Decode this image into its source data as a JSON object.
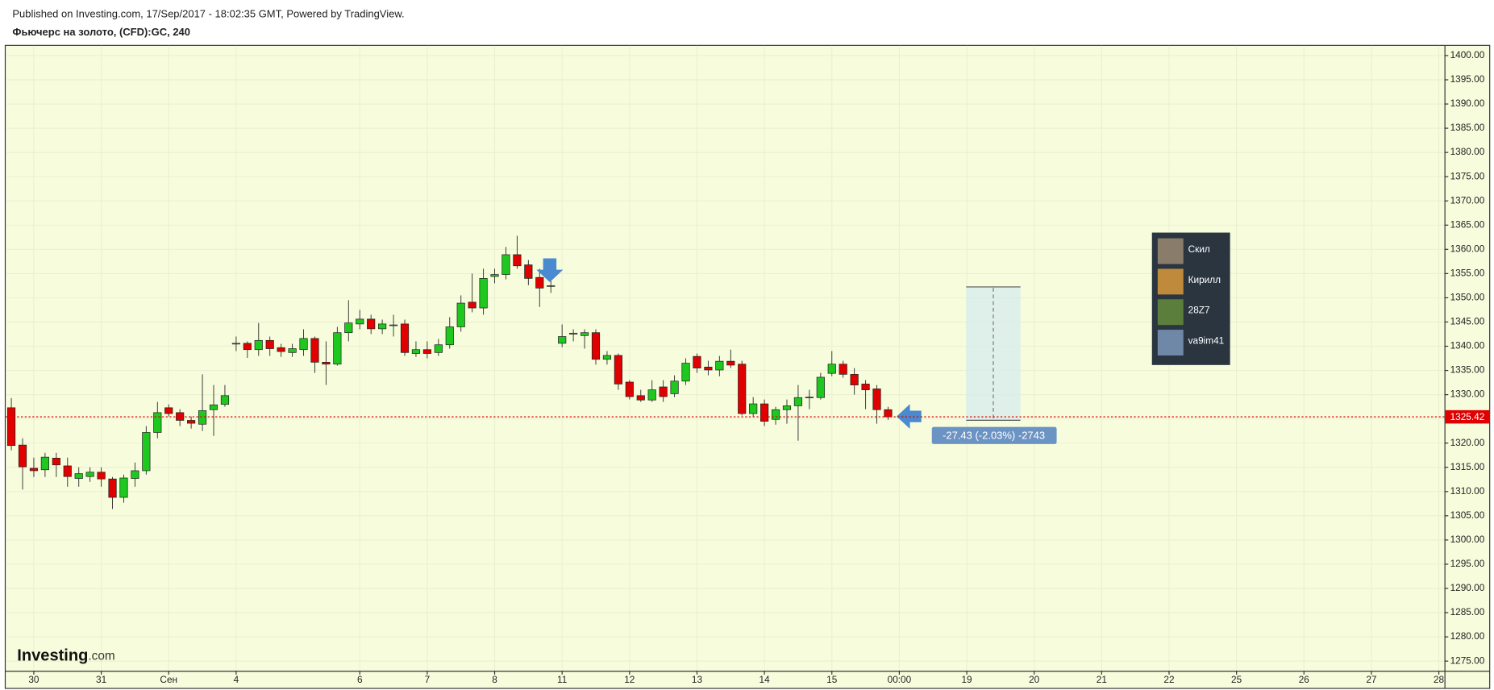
{
  "header": {
    "published": "Published on Investing.com, 17/Sep/2017 - 18:02:35 GMT, Powered by TradingView.",
    "symbol": "Фьючерс на золото, (CFD):GC, 240"
  },
  "logo": {
    "name": "Investing",
    "suffix": ".com"
  },
  "users": [
    "Скил",
    "Кирилл",
    "28Z7",
    "va9im41"
  ],
  "chart_data": {
    "type": "candlestick",
    "up_color": "#1ec81e",
    "down_color": "#e00000",
    "grid": true,
    "open": [
      1327.3,
      1319.6,
      1314.8,
      1314.5,
      1316.9,
      1315.3,
      1312.7,
      1313.1,
      1314.0,
      1312.6,
      1308.8,
      1312.7,
      1314.3,
      1322.2,
      1327.3,
      1326.3,
      1324.7,
      1323.9,
      1326.9,
      1328.0,
      1340.5,
      1340.6,
      1339.3,
      1341.2,
      1339.7,
      1338.7,
      1339.3,
      1341.6,
      1336.7,
      1336.3,
      1342.8,
      1344.6,
      1345.6,
      1343.6,
      1344.3,
      1344.6,
      1338.5,
      1339.3,
      1338.7,
      1340.3,
      1344.0,
      1349.1,
      1347.9,
      1354.4,
      1354.8,
      1358.9,
      1356.8,
      1354.2,
      1352.4,
      1340.6,
      1342.5,
      1342.2,
      1342.8,
      1337.3,
      1338.1,
      1332.6,
      1329.8,
      1328.9,
      1331.6,
      1330.2,
      1332.8,
      1337.9,
      1335.7,
      1335.1,
      1336.9,
      1336.3,
      1326.1,
      1328.1,
      1324.9,
      1326.9,
      1327.7,
      1329.5,
      1329.4,
      1334.4,
      1336.3,
      1334.2,
      1332.2,
      1331.2,
      1326.9
    ],
    "high": [
      1329.3,
      1321.0,
      1317.0,
      1318.0,
      1318.0,
      1317.0,
      1315.0,
      1315.0,
      1315.0,
      1313.0,
      1313.5,
      1316.0,
      1323.5,
      1328.5,
      1328.0,
      1327.0,
      1325.5,
      1334.2,
      1332.0,
      1332.0,
      1342.0,
      1341.0,
      1344.8,
      1342.0,
      1340.5,
      1340.5,
      1343.5,
      1342.0,
      1341.0,
      1344.0,
      1349.5,
      1347.5,
      1346.5,
      1345.5,
      1346.5,
      1345.5,
      1341.0,
      1341.0,
      1341.5,
      1346.0,
      1350.5,
      1355.0,
      1356.0,
      1356.0,
      1360.5,
      1362.8,
      1357.8,
      1356.0,
      1354.0,
      1344.5,
      1343.5,
      1343.5,
      1343.5,
      1339.0,
      1338.5,
      1333.0,
      1331.0,
      1333.0,
      1333.0,
      1334.0,
      1337.5,
      1338.5,
      1337.0,
      1338.0,
      1339.3,
      1337.0,
      1329.5,
      1329.0,
      1327.5,
      1329.0,
      1332.0,
      1331.0,
      1334.5,
      1339.0,
      1337.0,
      1335.5,
      1333.0,
      1332.0,
      1327.5
    ],
    "low": [
      1318.5,
      1310.4,
      1313.0,
      1313.0,
      1313.0,
      1311.0,
      1311.0,
      1312.0,
      1311.0,
      1306.4,
      1307.7,
      1311.0,
      1313.5,
      1321.0,
      1325.5,
      1323.5,
      1323.0,
      1322.5,
      1321.5,
      1327.5,
      1339.0,
      1337.6,
      1338.0,
      1338.0,
      1337.8,
      1337.8,
      1338.0,
      1334.5,
      1332.0,
      1336.0,
      1341.0,
      1343.5,
      1342.5,
      1342.5,
      1342.0,
      1338.0,
      1337.8,
      1337.5,
      1338.0,
      1339.5,
      1343.0,
      1347.0,
      1346.5,
      1353.0,
      1353.8,
      1356.0,
      1352.6,
      1348.1,
      1351.0,
      1339.8,
      1341.0,
      1339.5,
      1336.2,
      1336.2,
      1331.0,
      1329.0,
      1328.5,
      1328.5,
      1328.5,
      1329.5,
      1332.0,
      1334.5,
      1334.0,
      1333.8,
      1335.5,
      1325.7,
      1325.5,
      1323.5,
      1323.8,
      1324.0,
      1320.5,
      1327.0,
      1329.0,
      1333.8,
      1333.5,
      1330.0,
      1327.0,
      1324.0,
      1324.8
    ],
    "close": [
      1319.5,
      1315.1,
      1314.3,
      1317.1,
      1315.5,
      1313.1,
      1313.7,
      1314.0,
      1312.6,
      1308.8,
      1312.8,
      1314.3,
      1322.2,
      1326.3,
      1326.1,
      1324.7,
      1324.1,
      1326.7,
      1327.9,
      1329.8,
      1340.6,
      1339.3,
      1341.2,
      1339.5,
      1338.9,
      1339.5,
      1341.6,
      1336.7,
      1336.3,
      1342.8,
      1344.8,
      1345.6,
      1343.6,
      1344.6,
      1344.4,
      1338.7,
      1339.3,
      1338.5,
      1340.3,
      1344.0,
      1348.9,
      1347.9,
      1354.0,
      1354.8,
      1358.9,
      1356.6,
      1354.0,
      1352.0,
      1352.5,
      1342.0,
      1342.7,
      1342.8,
      1337.3,
      1338.1,
      1332.2,
      1329.6,
      1328.9,
      1331.0,
      1329.6,
      1332.8,
      1336.5,
      1335.5,
      1335.1,
      1336.9,
      1336.1,
      1326.1,
      1328.1,
      1324.5,
      1326.9,
      1327.7,
      1329.4,
      1329.5,
      1333.6,
      1336.3,
      1334.2,
      1332.0,
      1331.0,
      1326.9,
      1325.42
    ],
    "last_price": 1325.42,
    "measure_label": "-27.43 (-2.03%) -2743",
    "xlim": [
      -0.5,
      127.5
    ],
    "xticks": [
      {
        "value": 2,
        "label": "30"
      },
      {
        "value": 8,
        "label": "31"
      },
      {
        "value": 14,
        "label": "Сен"
      },
      {
        "value": 20,
        "label": "4"
      },
      {
        "value": 31,
        "label": "6"
      },
      {
        "value": 37,
        "label": "7"
      },
      {
        "value": 43,
        "label": "8"
      },
      {
        "value": 49,
        "label": "11"
      },
      {
        "value": 55,
        "label": "12"
      },
      {
        "value": 61,
        "label": "13"
      },
      {
        "value": 67,
        "label": "14"
      },
      {
        "value": 73,
        "label": "15"
      },
      {
        "value": 79,
        "label": "00:00"
      },
      {
        "value": 85,
        "label": "19"
      },
      {
        "value": 91,
        "label": "20"
      },
      {
        "value": 97,
        "label": "21"
      },
      {
        "value": 103,
        "label": "22"
      },
      {
        "value": 109,
        "label": "25"
      },
      {
        "value": 115,
        "label": "26"
      },
      {
        "value": 121,
        "label": "27"
      },
      {
        "value": 127,
        "label": "28"
      }
    ],
    "ylim": [
      1273,
      1402
    ],
    "yticks": [
      {
        "value": 1275,
        "label": "1275.00"
      },
      {
        "value": 1280,
        "label": "1280.00"
      },
      {
        "value": 1285,
        "label": "1285.00"
      },
      {
        "value": 1290,
        "label": "1290.00"
      },
      {
        "value": 1295,
        "label": "1295.00"
      },
      {
        "value": 1300,
        "label": "1300.00"
      },
      {
        "value": 1305,
        "label": "1305.00"
      },
      {
        "value": 1310,
        "label": "1310.00"
      },
      {
        "value": 1315,
        "label": "1315.00"
      },
      {
        "value": 1320,
        "label": "1320.00"
      },
      {
        "value": 1325,
        "label": "1325.00"
      },
      {
        "value": 1330,
        "label": "1330.00"
      },
      {
        "value": 1335,
        "label": "1335.00"
      },
      {
        "value": 1340,
        "label": "1340.00"
      },
      {
        "value": 1345,
        "label": "1345.00"
      },
      {
        "value": 1350,
        "label": "1350.00"
      },
      {
        "value": 1355,
        "label": "1355.00"
      },
      {
        "value": 1360,
        "label": "1360.00"
      },
      {
        "value": 1365,
        "label": "1365.00"
      },
      {
        "value": 1370,
        "label": "1370.00"
      },
      {
        "value": 1375,
        "label": "1375.00"
      },
      {
        "value": 1380,
        "label": "1380.00"
      },
      {
        "value": 1385,
        "label": "1385.00"
      },
      {
        "value": 1390,
        "label": "1390.00"
      },
      {
        "value": 1395,
        "label": "1395.00"
      },
      {
        "value": 1400,
        "label": "1400.00"
      }
    ]
  }
}
